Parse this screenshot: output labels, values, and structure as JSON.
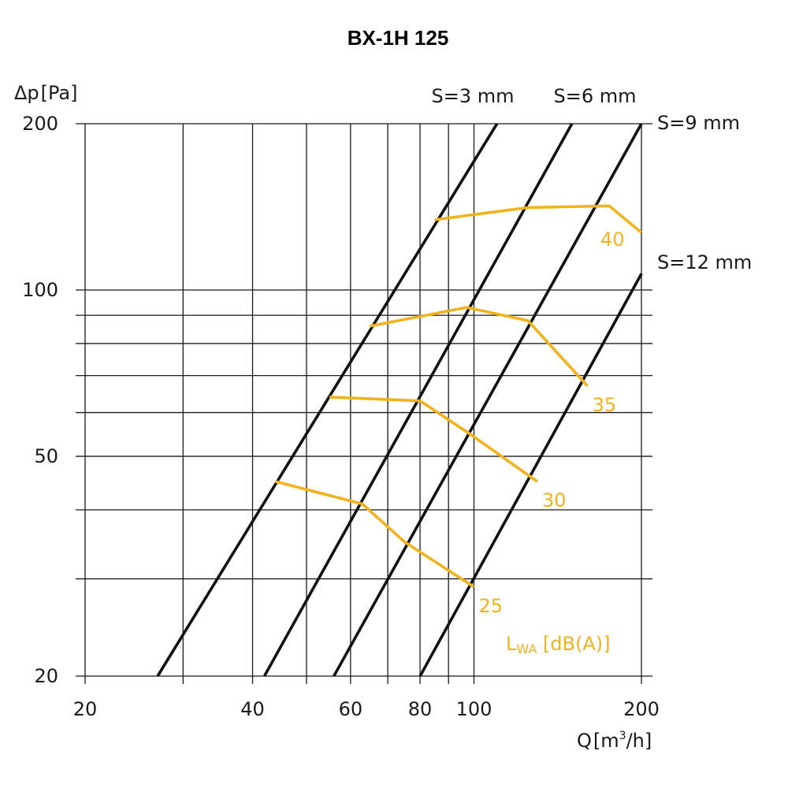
{
  "chart_data": {
    "type": "line",
    "title": "BX-1H 125",
    "ylabel": "Δp",
    "ylabel_unit": "[Pa]",
    "xlabel": "Q",
    "xlabel_unit_prefix": "[m",
    "xlabel_unit_sup": "3",
    "xlabel_unit_suffix": "/h]",
    "x_scale": "log",
    "y_scale": "log",
    "xlim": [
      20,
      200
    ],
    "ylim": [
      20,
      200
    ],
    "x_ticks": [
      20,
      40,
      60,
      80,
      100,
      200
    ],
    "y_ticks": [
      20,
      50,
      100,
      200
    ],
    "x_gridlines": [
      30,
      40,
      50,
      60,
      70,
      80,
      90,
      100,
      200
    ],
    "y_gridlines": [
      30,
      40,
      50,
      60,
      70,
      80,
      90,
      100,
      200
    ],
    "series": [
      {
        "name": "S=3 mm",
        "x": [
          27,
          110
        ],
        "y": [
          20,
          200
        ],
        "color": "#111111"
      },
      {
        "name": "S=6 mm",
        "x": [
          42,
          150
        ],
        "y": [
          20,
          200
        ],
        "color": "#111111"
      },
      {
        "name": "S=9 mm",
        "x": [
          56,
          200
        ],
        "y": [
          20,
          200
        ],
        "color": "#111111"
      },
      {
        "name": "S=12 mm",
        "x": [
          80,
          200
        ],
        "y": [
          20,
          107
        ],
        "color": "#111111"
      }
    ],
    "noise_legend": {
      "prefix": "L",
      "sub": "WA",
      "suffix": " [dB(A)]"
    },
    "noise_curves": [
      {
        "name": "25",
        "x": [
          44,
          63,
          75,
          100
        ],
        "y": [
          45,
          41,
          35,
          29
        ],
        "color": "#f2b21c"
      },
      {
        "name": "30",
        "x": [
          55,
          80,
          98,
          130
        ],
        "y": [
          64,
          63,
          55,
          45
        ],
        "color": "#f2b21c"
      },
      {
        "name": "35",
        "x": [
          65,
          97,
          125,
          160
        ],
        "y": [
          86,
          93,
          88,
          67
        ],
        "color": "#f2b21c"
      },
      {
        "name": "40",
        "x": [
          85,
          125,
          175,
          200
        ],
        "y": [
          134,
          141,
          142,
          127
        ],
        "color": "#f2b21c"
      }
    ]
  }
}
